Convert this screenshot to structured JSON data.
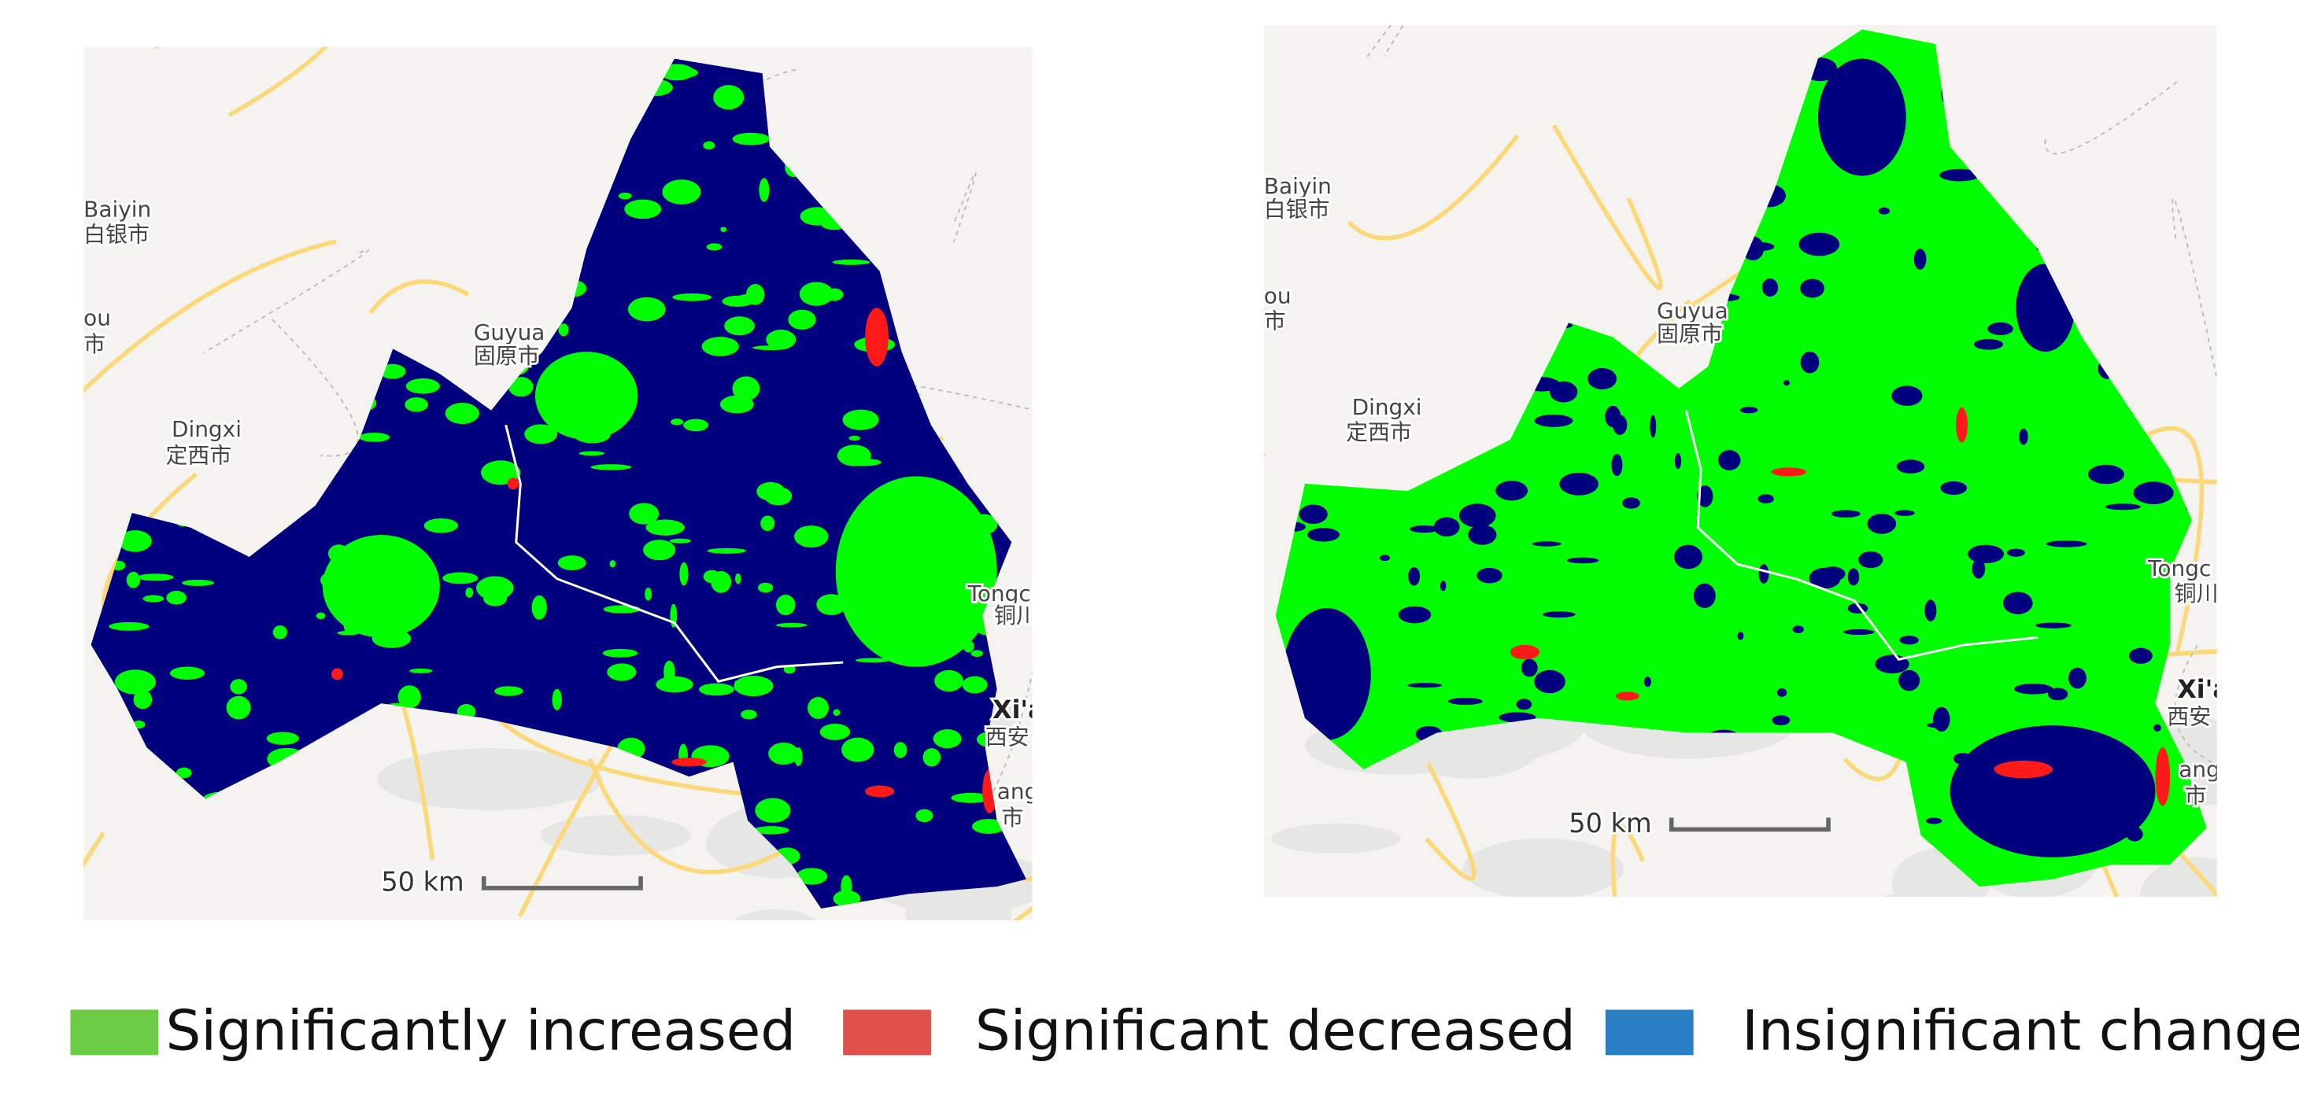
{
  "maps": [
    {
      "labels": [
        "Baiyin",
        "白银市",
        "ou",
        "市",
        "Guyua",
        "固原市",
        "Dingxi",
        "定西市",
        "Tongc",
        "铜川",
        "Xi'a",
        "西安",
        "ang",
        "市"
      ],
      "scale": "50 km"
    },
    {
      "labels": [
        "Baiyin",
        "白银市",
        "ou",
        "市",
        "Guyua",
        "固原市",
        "Dingxi",
        "定西市",
        "Tongc",
        "铜川",
        "Xi'a",
        "西安",
        "ang",
        "市"
      ],
      "scale": "50 km"
    }
  ],
  "legend": [
    {
      "label": "Significantly increased",
      "color": "#6ccc45"
    },
    {
      "label": "Significant decreased",
      "color": "#e0504a"
    },
    {
      "label": "Insignificant change",
      "color": "#2a7fc4"
    }
  ]
}
